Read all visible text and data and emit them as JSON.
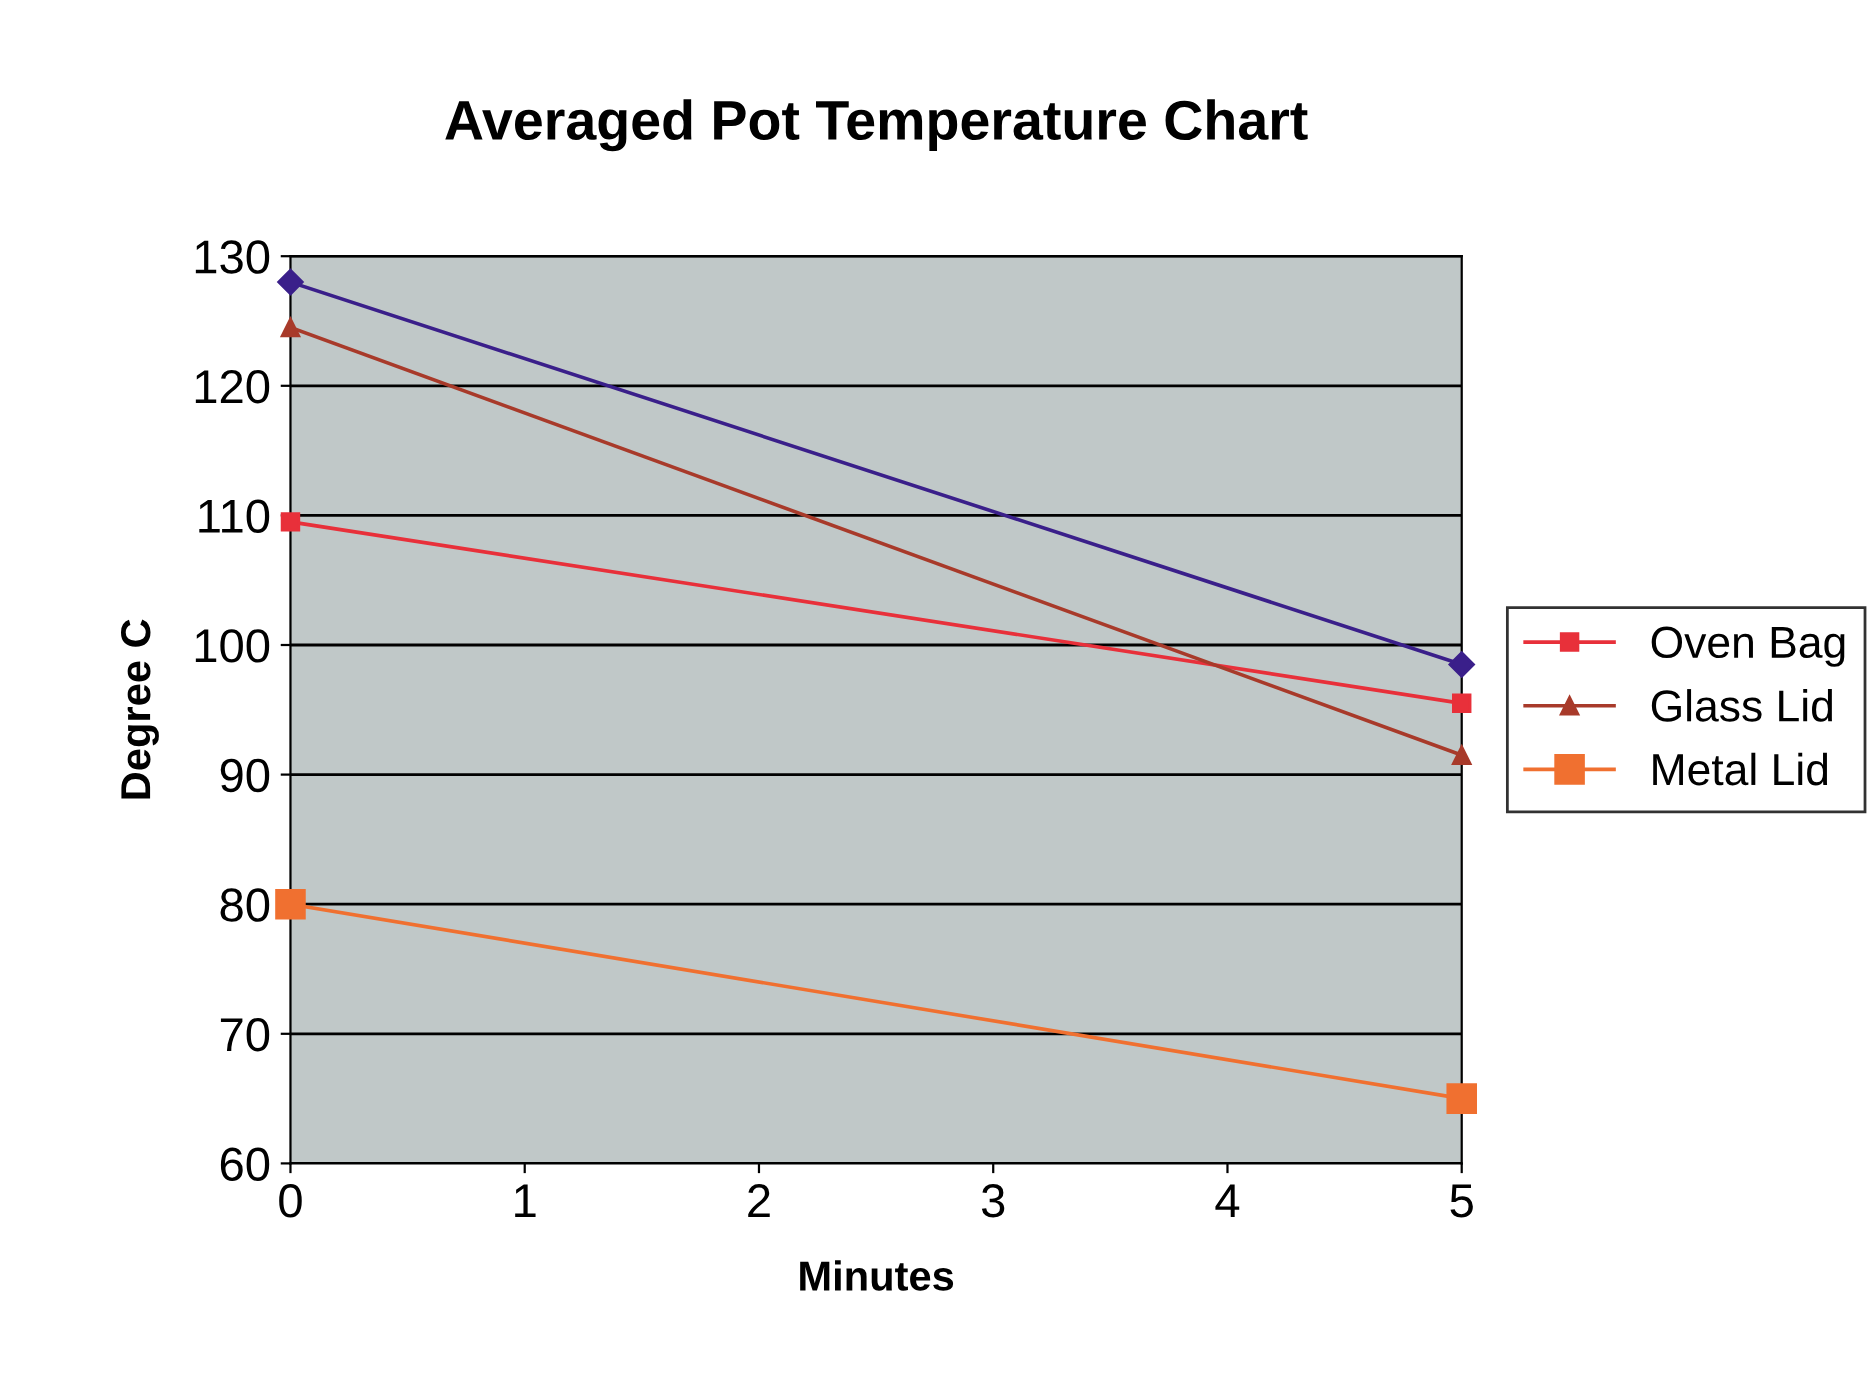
{
  "chart_data": {
    "type": "line",
    "title": "Averaged Pot Temperature Chart",
    "xlabel": "Minutes",
    "ylabel": "Degree C",
    "x": [
      0,
      5
    ],
    "series": [
      {
        "color": "#3a1f8a",
        "marker": "diamond",
        "values": [
          128,
          98.5
        ]
      },
      {
        "name": "Oven Bag",
        "color": "#e8303a",
        "marker": "square",
        "values": [
          109.5,
          95.5
        ]
      },
      {
        "name": "Glass Lid",
        "color": "#a83a2a",
        "marker": "triangle",
        "values": [
          124.5,
          91.5
        ]
      },
      {
        "name": "Metal Lid",
        "color": "#f07030",
        "marker": "square",
        "values": [
          80,
          65
        ]
      }
    ],
    "xlim": [
      0,
      5
    ],
    "xticks": [
      0,
      1,
      2,
      3,
      4,
      5
    ],
    "ylim": [
      60,
      130
    ],
    "yticks": [
      60,
      70,
      80,
      90,
      100,
      110,
      120,
      130
    ],
    "grid": "y",
    "legend": "right",
    "line_style": "solid"
  }
}
